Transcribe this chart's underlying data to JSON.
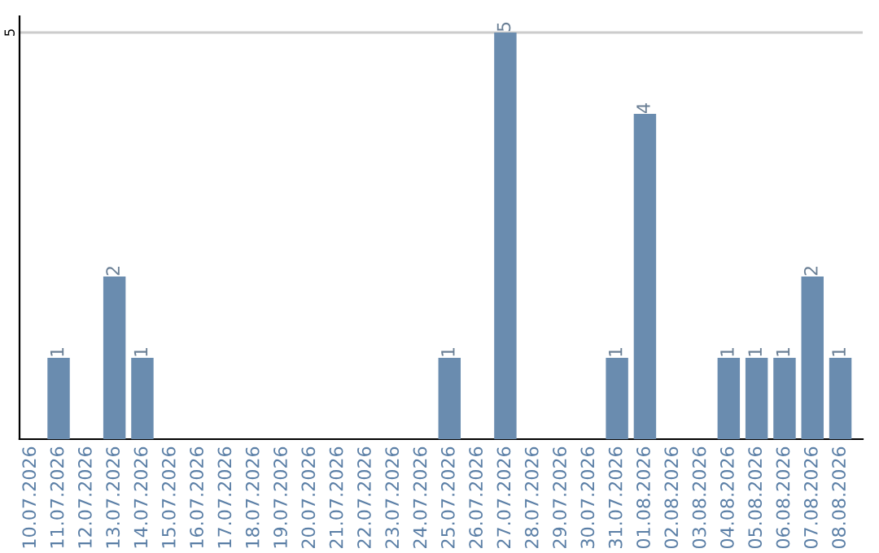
{
  "chart_data": {
    "type": "bar",
    "categories": [
      "10.07.2026",
      "11.07.2026",
      "12.07.2026",
      "13.07.2026",
      "14.07.2026",
      "15.07.2026",
      "16.07.2026",
      "17.07.2026",
      "18.07.2026",
      "19.07.2026",
      "20.07.2026",
      "21.07.2026",
      "22.07.2026",
      "23.07.2026",
      "24.07.2026",
      "25.07.2026",
      "26.07.2026",
      "27.07.2026",
      "28.07.2026",
      "29.07.2026",
      "30.07.2026",
      "31.07.2026",
      "01.08.2026",
      "02.08.2026",
      "03.08.2026",
      "04.08.2026",
      "05.08.2026",
      "06.08.2026",
      "07.08.2026",
      "08.08.2026"
    ],
    "values": [
      0,
      1,
      0,
      2,
      1,
      0,
      0,
      0,
      0,
      0,
      0,
      0,
      0,
      0,
      0,
      1,
      0,
      5,
      0,
      0,
      0,
      1,
      4,
      0,
      0,
      1,
      1,
      1,
      2,
      1
    ],
    "value_labels": [
      null,
      "1",
      null,
      "2",
      "1",
      null,
      null,
      null,
      null,
      null,
      null,
      null,
      null,
      null,
      null,
      "1",
      null,
      "5",
      null,
      null,
      null,
      "1",
      "4",
      null,
      null,
      "1",
      "1",
      "1",
      "2",
      "1"
    ],
    "color": "#6a8caf",
    "ylim": [
      0,
      5.2
    ],
    "yticks": [
      5
    ],
    "grid": "y"
  }
}
